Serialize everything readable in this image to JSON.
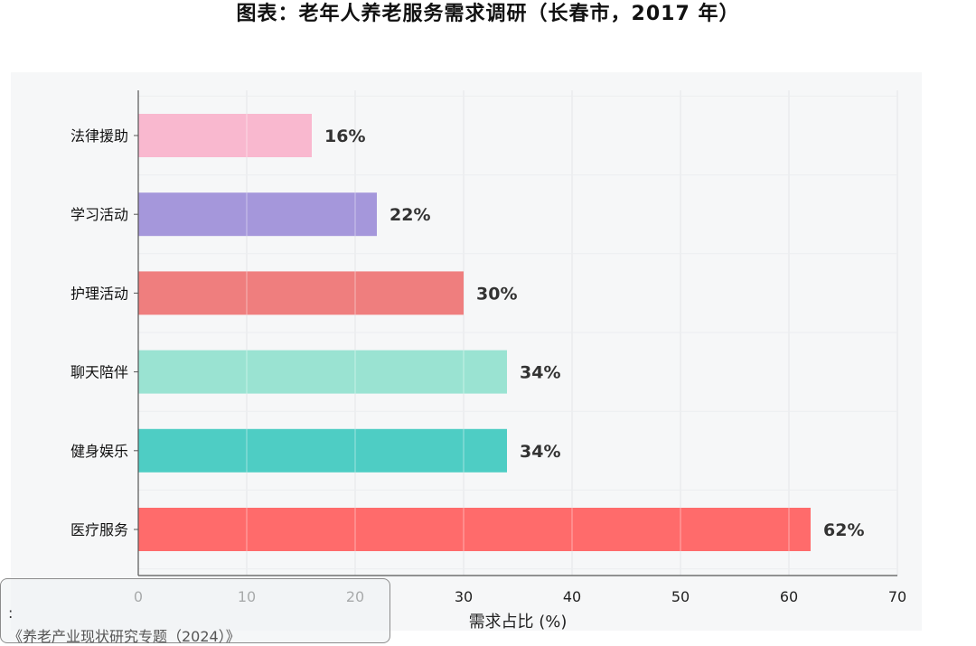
{
  "page": {
    "title": "图表：老年人养老服务需求调研（长春市，2017 年）"
  },
  "chart_data": {
    "type": "bar",
    "orientation": "horizontal",
    "categories": [
      "法律援助",
      "学习活动",
      "护理活动",
      "聊天陪伴",
      "健身娱乐",
      "医疗服务"
    ],
    "values": [
      16,
      22,
      30,
      34,
      34,
      62
    ],
    "value_labels": [
      "16%",
      "22%",
      "30%",
      "34%",
      "34%",
      "62%"
    ],
    "colors": [
      "#f9b8cf",
      "#a597db",
      "#ef7e7e",
      "#9ae3d2",
      "#4ecdc4",
      "#ff6b6b"
    ],
    "xlabel": "需求占比 (%)",
    "ylabel": "",
    "xlim": [
      0,
      70
    ],
    "xticks": [
      0,
      10,
      20,
      30,
      40,
      50,
      60,
      70
    ],
    "grid": true
  },
  "overlay_card": {
    "line1": ":",
    "line2": "《养老产业现状研究专题（2024）》"
  }
}
